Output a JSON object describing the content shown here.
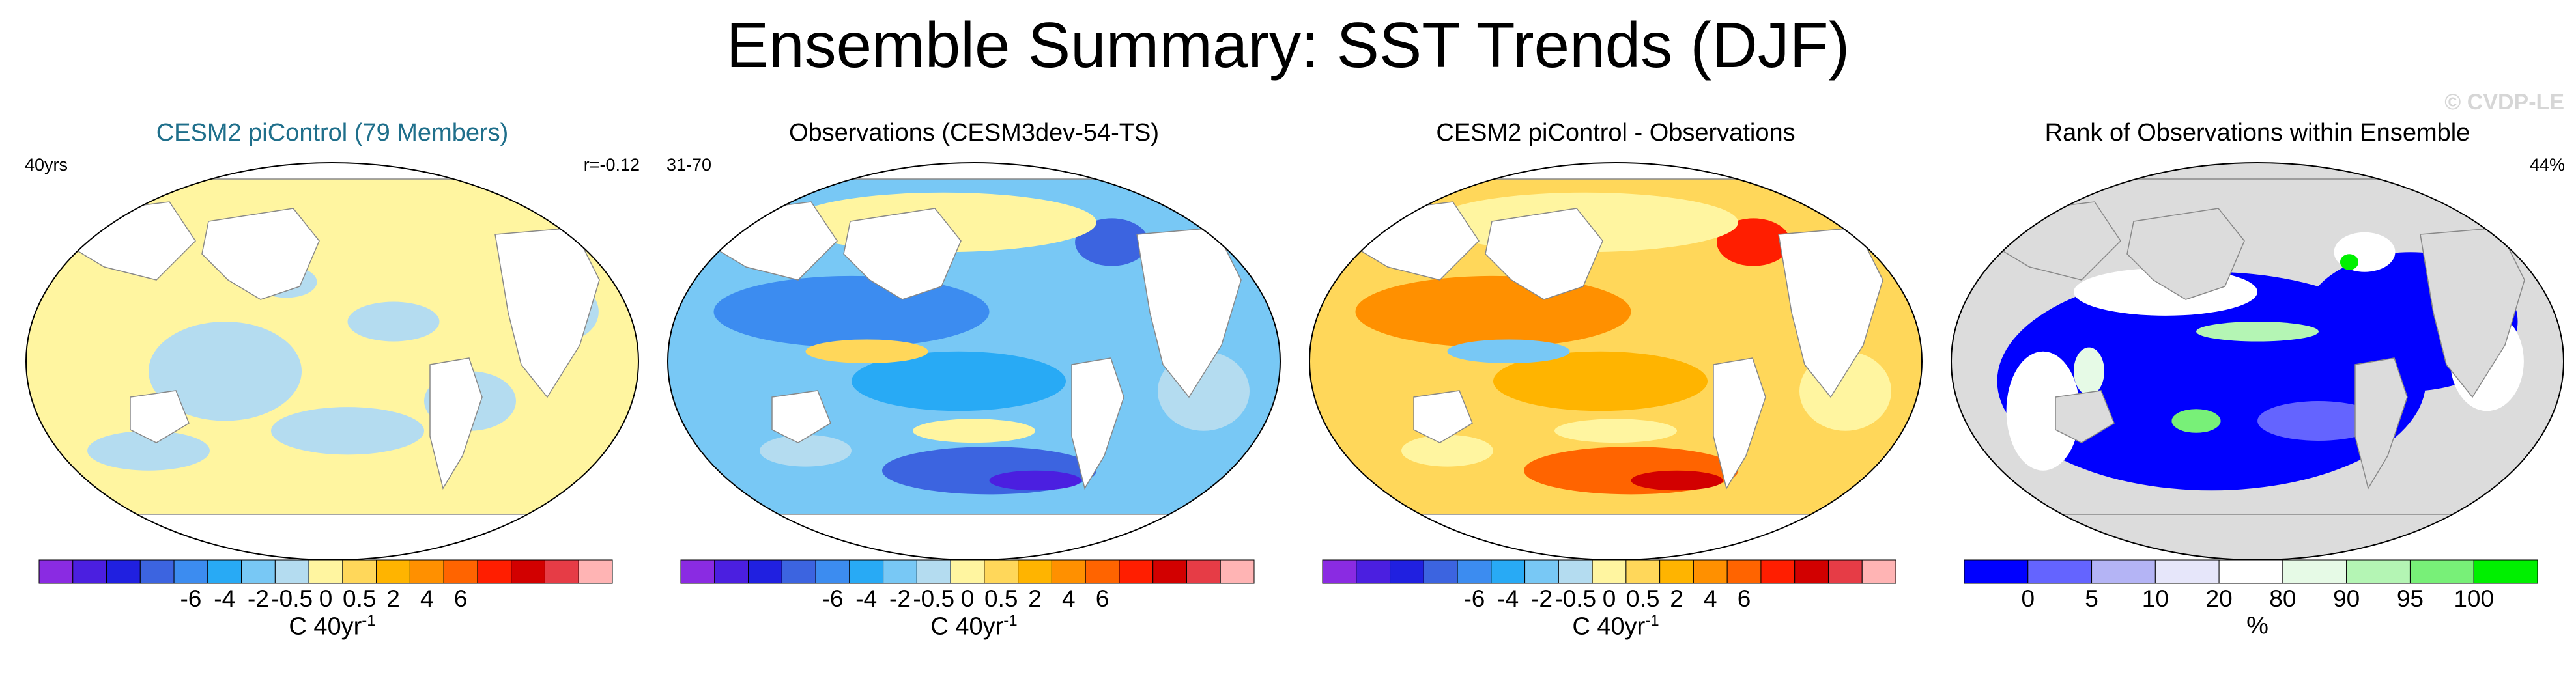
{
  "page": {
    "title": "Ensemble Summary: SST Trends (DJF)",
    "watermark": "© CVDP-LE"
  },
  "panels": [
    {
      "title": "CESM2 piControl (79 Members)",
      "title_color": "#1f6f8b",
      "corner_left": "40yrs",
      "corner_right": "r=-0.12",
      "map_style": "model"
    },
    {
      "title": "Observations (CESM3dev-54-TS)",
      "title_color": "#000000",
      "corner_left": "31-70",
      "corner_right": "",
      "map_style": "obs"
    },
    {
      "title": "CESM2 piControl - Observations",
      "title_color": "#000000",
      "corner_left": "",
      "corner_right": "",
      "map_style": "diff"
    },
    {
      "title": "Rank of Observations within Ensemble",
      "title_color": "#000000",
      "corner_left": "",
      "corner_right": "44%",
      "map_style": "rank"
    }
  ],
  "chart_data": [
    {
      "type": "colorbar",
      "name": "trend",
      "colors": [
        "#8a2be2",
        "#4b1fe0",
        "#2020e0",
        "#3c64e0",
        "#3c8cf0",
        "#28aaf5",
        "#78c8f5",
        "#b4dcf0",
        "#fff5a0",
        "#ffd75a",
        "#ffb400",
        "#ff9000",
        "#ff6400",
        "#ff1e00",
        "#d20000",
        "#e63c46",
        "#ffb4b4"
      ],
      "levels": [
        "-6",
        "-4",
        "-2",
        "-0.5",
        "0",
        "0.5",
        "2",
        "4",
        "6"
      ],
      "label": "C 40yr",
      "label_sup": "-1"
    },
    {
      "type": "colorbar",
      "name": "rank",
      "colors": [
        "#0000ff",
        "#6464ff",
        "#b4b4f5",
        "#e6e6fa",
        "#ffffff",
        "#e6fae6",
        "#b4f5b4",
        "#78f078",
        "#00f000"
      ],
      "levels": [
        "0",
        "5",
        "10",
        "20",
        "80",
        "90",
        "95",
        "100"
      ],
      "label": "%"
    }
  ]
}
